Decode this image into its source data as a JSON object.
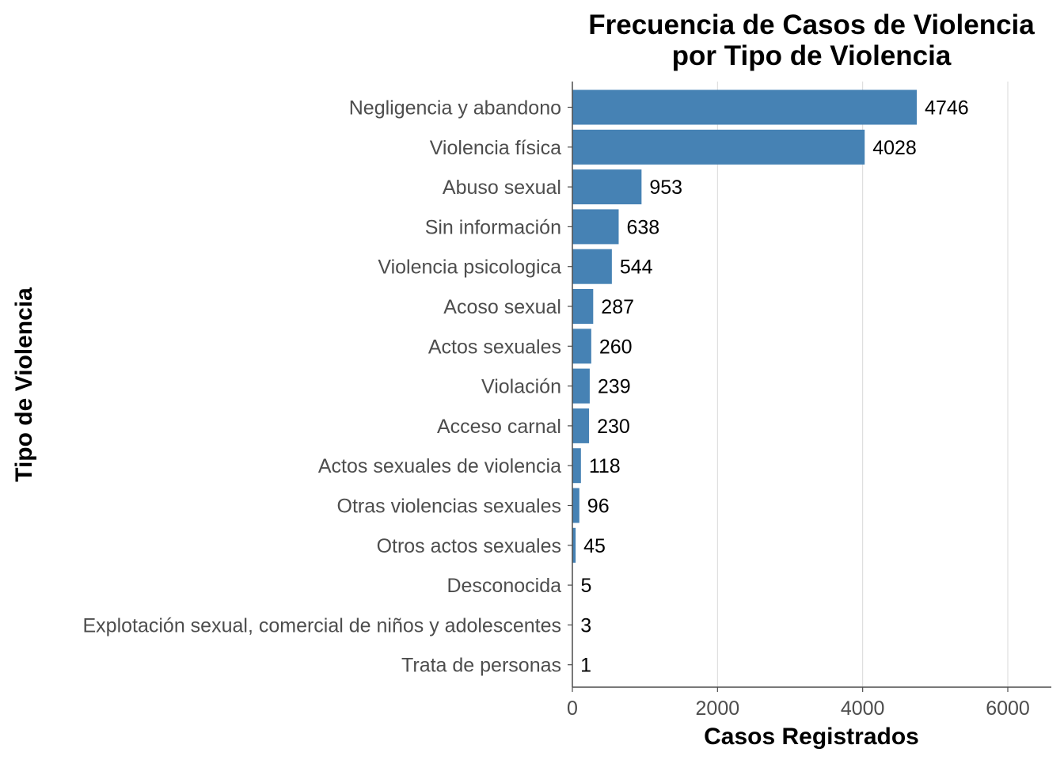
{
  "chart_data": {
    "type": "bar",
    "orientation": "horizontal",
    "title_lines": [
      "Frecuencia de Casos de Violencia",
      "por Tipo de Violencia"
    ],
    "xlabel": "Casos Registrados",
    "ylabel": "Tipo de Violencia",
    "categories": [
      "Negligencia y abandono",
      "Violencia física",
      "Abuso sexual",
      "Sin información",
      "Violencia psicologica",
      "Acoso sexual",
      "Actos sexuales",
      "Violación",
      "Acceso carnal",
      "Actos sexuales de violencia",
      "Otras violencias sexuales",
      "Otros actos sexuales",
      "Desconocida",
      "Explotación sexual, comercial de niños y adolescentes",
      "Trata de personas"
    ],
    "values": [
      4746,
      4028,
      953,
      638,
      544,
      287,
      260,
      239,
      230,
      118,
      96,
      45,
      5,
      3,
      1
    ],
    "data_labels": [
      "4746",
      "4028",
      "953",
      "638",
      "544",
      "287",
      "260",
      "239",
      "230",
      "118",
      "96",
      "45",
      "5",
      "3",
      "1"
    ],
    "xlim": [
      0,
      6600
    ],
    "xticks": [
      0,
      2000,
      4000,
      6000
    ],
    "xtick_labels": [
      "0",
      "2000",
      "4000",
      "6000"
    ],
    "grid": "vertical major",
    "legend": "none",
    "bar_color": "#4682B4",
    "grid_color": "#d9d9d9",
    "axis_color": "#4d4d4d"
  }
}
